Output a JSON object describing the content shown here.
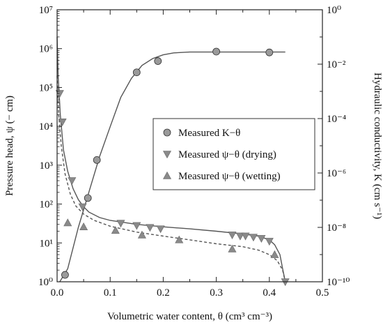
{
  "chart_data": {
    "type": "scatter",
    "xlabel": "Volumetric water content, θ  (cm³ cm⁻³)",
    "ylabel_left": "Pressure head, ψ  (− cm)",
    "ylabel_right": "Hydraulic conductivity, K (cm s⁻¹)",
    "xlim": [
      0.0,
      0.5
    ],
    "x_ticks": [
      "0.0",
      "0.1",
      "0.2",
      "0.3",
      "0.4",
      "0.5"
    ],
    "left_axis": {
      "scale": "log",
      "ylim": [
        1,
        10000000
      ],
      "ticks": [
        "10⁰",
        "10¹",
        "10²",
        "10³",
        "10⁴",
        "10⁵",
        "10⁶",
        "10⁷"
      ]
    },
    "right_axis": {
      "scale": "log",
      "ylim": [
        1e-10,
        1
      ],
      "ticks": [
        "10⁻¹⁰",
        "10⁻⁸",
        "10⁻⁶",
        "10⁻⁴",
        "10⁻²",
        "10⁰"
      ]
    },
    "grid": false,
    "legend_position": "center-right",
    "series": [
      {
        "name": "Measured K−θ",
        "axis": "right",
        "marker": "circle",
        "points": [
          [
            0.015,
            1.8e-10
          ],
          [
            0.058,
            1.2e-07
          ],
          [
            0.075,
            3e-06
          ],
          [
            0.15,
            0.005
          ],
          [
            0.19,
            0.013
          ],
          [
            0.3,
            0.029
          ],
          [
            0.4,
            0.027
          ]
        ]
      },
      {
        "name": "Measured ψ−θ (drying)",
        "axis": "left",
        "marker": "triangle-down",
        "points": [
          [
            0.005,
            70000
          ],
          [
            0.01,
            13000
          ],
          [
            0.028,
            400
          ],
          [
            0.048,
            85
          ],
          [
            0.12,
            32
          ],
          [
            0.15,
            28
          ],
          [
            0.175,
            25
          ],
          [
            0.195,
            23
          ],
          [
            0.33,
            16
          ],
          [
            0.345,
            15
          ],
          [
            0.355,
            15
          ],
          [
            0.37,
            14
          ],
          [
            0.385,
            13
          ],
          [
            0.4,
            11
          ],
          [
            0.43,
            1
          ]
        ]
      },
      {
        "name": "Measured ψ−θ (wetting)",
        "axis": "left",
        "marker": "triangle-up",
        "points": [
          [
            0.02,
            33
          ],
          [
            0.05,
            26
          ],
          [
            0.11,
            21
          ],
          [
            0.16,
            16
          ],
          [
            0.23,
            12
          ],
          [
            0.33,
            7
          ],
          [
            0.41,
            5
          ]
        ]
      }
    ],
    "fitted_curves": [
      {
        "style": "solid",
        "axis": "right",
        "points": [
          [
            0.005,
            1e-10
          ],
          [
            0.02,
            3e-10
          ],
          [
            0.04,
            1e-08
          ],
          [
            0.06,
            2e-07
          ],
          [
            0.08,
            4e-06
          ],
          [
            0.1,
            5e-05
          ],
          [
            0.12,
            0.0006
          ],
          [
            0.14,
            0.003
          ],
          [
            0.16,
            0.009
          ],
          [
            0.18,
            0.016
          ],
          [
            0.2,
            0.022
          ],
          [
            0.22,
            0.026
          ],
          [
            0.25,
            0.028
          ],
          [
            0.3,
            0.028
          ],
          [
            0.35,
            0.028
          ],
          [
            0.4,
            0.028
          ],
          [
            0.43,
            0.028
          ]
        ]
      },
      {
        "style": "solid",
        "axis": "left",
        "points": [
          [
            0.0,
            2000000
          ],
          [
            0.002,
            200000
          ],
          [
            0.006,
            20000
          ],
          [
            0.012,
            2500
          ],
          [
            0.02,
            700
          ],
          [
            0.03,
            250
          ],
          [
            0.04,
            130
          ],
          [
            0.05,
            85
          ],
          [
            0.06,
            62
          ],
          [
            0.08,
            45
          ],
          [
            0.1,
            38
          ],
          [
            0.15,
            30
          ],
          [
            0.2,
            26
          ],
          [
            0.25,
            23
          ],
          [
            0.3,
            20
          ],
          [
            0.35,
            17
          ],
          [
            0.38,
            15
          ],
          [
            0.4,
            12
          ],
          [
            0.41,
            9
          ],
          [
            0.42,
            5
          ],
          [
            0.425,
            2.2
          ],
          [
            0.43,
            1
          ]
        ]
      },
      {
        "style": "dashed",
        "axis": "left",
        "points": [
          [
            0.0,
            200000
          ],
          [
            0.003,
            20000
          ],
          [
            0.008,
            3000
          ],
          [
            0.015,
            600
          ],
          [
            0.025,
            180
          ],
          [
            0.035,
            90
          ],
          [
            0.05,
            55
          ],
          [
            0.07,
            38
          ],
          [
            0.1,
            27
          ],
          [
            0.15,
            19
          ],
          [
            0.2,
            15
          ],
          [
            0.25,
            12
          ],
          [
            0.3,
            9.5
          ],
          [
            0.35,
            8
          ],
          [
            0.38,
            6.5
          ],
          [
            0.4,
            5
          ],
          [
            0.415,
            3.5
          ],
          [
            0.425,
            2
          ],
          [
            0.43,
            1
          ]
        ]
      }
    ]
  }
}
